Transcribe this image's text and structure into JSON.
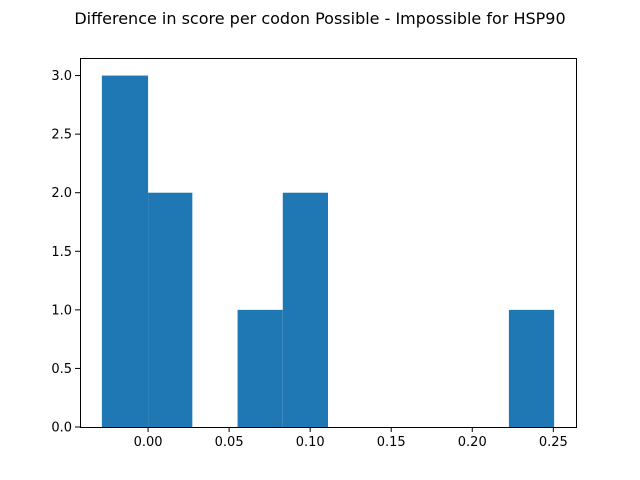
{
  "chart_data": {
    "type": "bar",
    "title": "Difference in score per codon Possible - Impossible for HSP90",
    "xlabel": "",
    "ylabel": "",
    "bar_color": "#1f77b4",
    "bins": [
      {
        "x0": -0.0285,
        "x1": 0.0,
        "value": 3
      },
      {
        "x0": 0.0,
        "x1": 0.0273,
        "value": 2
      },
      {
        "x0": 0.0273,
        "x1": 0.0552,
        "value": 0
      },
      {
        "x0": 0.0552,
        "x1": 0.0831,
        "value": 1
      },
      {
        "x0": 0.0831,
        "x1": 0.111,
        "value": 2
      },
      {
        "x0": 0.111,
        "x1": 0.1389,
        "value": 0
      },
      {
        "x0": 0.1389,
        "x1": 0.1668,
        "value": 0
      },
      {
        "x0": 0.1668,
        "x1": 0.1947,
        "value": 0
      },
      {
        "x0": 0.1947,
        "x1": 0.2226,
        "value": 0
      },
      {
        "x0": 0.2226,
        "x1": 0.2505,
        "value": 1
      }
    ],
    "xlim": [
      -0.042,
      0.264
    ],
    "ylim": [
      0,
      3.0
    ],
    "xticks": [
      {
        "value": 0.0,
        "label": "0.00"
      },
      {
        "value": 0.05,
        "label": "0.05"
      },
      {
        "value": 0.1,
        "label": "0.10"
      },
      {
        "value": 0.15,
        "label": "0.15"
      },
      {
        "value": 0.2,
        "label": "0.20"
      },
      {
        "value": 0.25,
        "label": "0.25"
      }
    ],
    "yticks": [
      {
        "value": 0.0,
        "label": "0.0"
      },
      {
        "value": 0.5,
        "label": "0.5"
      },
      {
        "value": 1.0,
        "label": "1.0"
      },
      {
        "value": 1.5,
        "label": "1.5"
      },
      {
        "value": 2.0,
        "label": "2.0"
      },
      {
        "value": 2.5,
        "label": "2.5"
      },
      {
        "value": 3.0,
        "label": "3.0"
      }
    ]
  }
}
